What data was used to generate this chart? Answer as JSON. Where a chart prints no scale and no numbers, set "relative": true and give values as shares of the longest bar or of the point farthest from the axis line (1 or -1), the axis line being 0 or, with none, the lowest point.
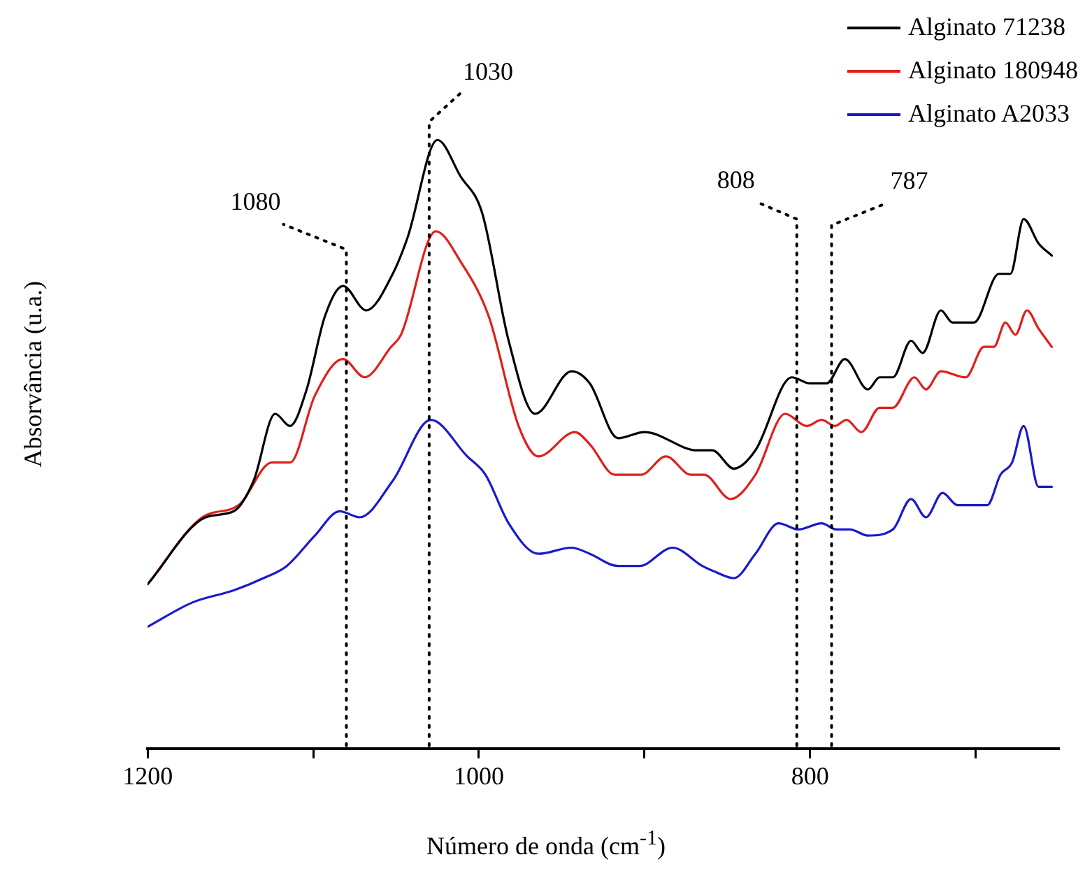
{
  "chart_data": {
    "type": "line",
    "xlabel": "Número de onda (cm$^{-1}$)",
    "ylabel": "Absorvância (u.a.)",
    "relative": true,
    "xlim": [
      1200,
      650
    ],
    "xticks": [
      1200,
      {
        "value": 1100,
        "label": null
      },
      1000,
      {
        "value": 900,
        "label": null
      },
      800,
      {
        "value": 700,
        "label": null
      }
    ],
    "legend": "top right",
    "grid": false,
    "marker": "none",
    "line_style": "solid",
    "ref_lines": [
      {
        "axis": "x",
        "value": 1080,
        "label": "1080",
        "line_style": "dotted",
        "color": "#000000"
      },
      {
        "axis": "x",
        "value": 1030,
        "label": "1030",
        "line_style": "dotted",
        "color": "#000000"
      },
      {
        "axis": "x",
        "value": 808,
        "label": "808",
        "line_style": "dotted",
        "color": "#000000"
      },
      {
        "axis": "x",
        "value": 787,
        "label": "787",
        "line_style": "dotted",
        "color": "#000000"
      }
    ],
    "series": [
      {
        "name": "Alginato 71238",
        "color": "#000000",
        "x": [
          1200,
          1165,
          1148,
          1136,
          1123,
          1114,
          1104,
          1093,
          1082,
          1068,
          1052,
          1043,
          1025,
          1011,
          998,
          982,
          966,
          944,
          933,
          916,
          900,
          868,
          859,
          846,
          833,
          811,
          800,
          790,
          779,
          765,
          758,
          750,
          739,
          732,
          721,
          714,
          708,
          701,
          686,
          679,
          671,
          662,
          654
        ],
        "values": [
          0.27,
          0.38,
          0.39,
          0.44,
          0.55,
          0.53,
          0.59,
          0.71,
          0.76,
          0.72,
          0.78,
          0.84,
          1,
          0.94,
          0.88,
          0.67,
          0.55,
          0.62,
          0.6,
          0.51,
          0.52,
          0.49,
          0.49,
          0.46,
          0.49,
          0.61,
          0.6,
          0.6,
          0.64,
          0.59,
          0.61,
          0.61,
          0.67,
          0.65,
          0.72,
          0.7,
          0.7,
          0.7,
          0.78,
          0.78,
          0.87,
          0.83,
          0.81
        ]
      },
      {
        "name": "Alginato 180948",
        "color": "#e0201a",
        "x": [
          1200,
          1167,
          1145,
          1125,
          1114,
          1099,
          1082,
          1069,
          1053,
          1047,
          1026,
          1011,
          994,
          976,
          964,
          942,
          933,
          918,
          902,
          887,
          872,
          864,
          848,
          833,
          815,
          802,
          793,
          785,
          778,
          769,
          758,
          750,
          737,
          730,
          721,
          706,
          695,
          689,
          682,
          676,
          669,
          662,
          654
        ],
        "values": [
          0.27,
          0.38,
          0.4,
          0.47,
          0.47,
          0.58,
          0.64,
          0.61,
          0.66,
          0.68,
          0.85,
          0.8,
          0.71,
          0.53,
          0.48,
          0.52,
          0.5,
          0.45,
          0.45,
          0.48,
          0.45,
          0.45,
          0.41,
          0.45,
          0.55,
          0.53,
          0.54,
          0.53,
          0.54,
          0.52,
          0.56,
          0.56,
          0.61,
          0.59,
          0.62,
          0.61,
          0.66,
          0.66,
          0.7,
          0.68,
          0.72,
          0.69,
          0.66
        ]
      },
      {
        "name": "Alginato A2033",
        "color": "#1a1acc",
        "x": [
          1200,
          1173,
          1148,
          1130,
          1116,
          1099,
          1084,
          1072,
          1052,
          1029,
          1007,
          996,
          982,
          964,
          944,
          933,
          916,
          903,
          883,
          865,
          857,
          846,
          833,
          819,
          807,
          793,
          784,
          776,
          765,
          750,
          739,
          730,
          720,
          711,
          706,
          693,
          685,
          678,
          671,
          662,
          654
        ],
        "values": [
          0.2,
          0.24,
          0.26,
          0.28,
          0.3,
          0.35,
          0.39,
          0.38,
          0.44,
          0.54,
          0.48,
          0.45,
          0.37,
          0.32,
          0.33,
          0.32,
          0.3,
          0.3,
          0.33,
          0.3,
          0.29,
          0.28,
          0.32,
          0.37,
          0.36,
          0.37,
          0.36,
          0.36,
          0.35,
          0.36,
          0.41,
          0.38,
          0.42,
          0.4,
          0.4,
          0.4,
          0.45,
          0.47,
          0.53,
          0.43,
          0.43
        ]
      }
    ]
  }
}
